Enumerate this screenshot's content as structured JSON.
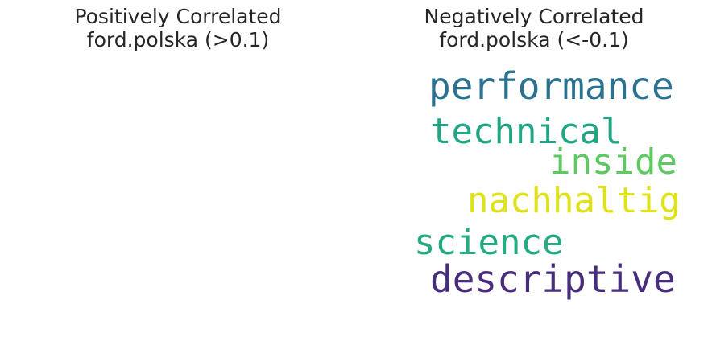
{
  "chart_data": [
    {
      "type": "wordcloud",
      "title_line1": "Positively Correlated",
      "title_line2": "ford.polska (>0.1)",
      "words": []
    },
    {
      "type": "wordcloud",
      "title_line1": "Negatively Correlated",
      "title_line2": "ford.polska (<-0.1)",
      "words": [
        {
          "text": "performance",
          "color": "#2c718e"
        },
        {
          "text": "technical",
          "color": "#21a685"
        },
        {
          "text": "inside",
          "color": "#5ec962"
        },
        {
          "text": "nachhaltig",
          "color": "#dde318"
        },
        {
          "text": "science",
          "color": "#25ab82"
        },
        {
          "text": "descriptive",
          "color": "#472d7b"
        }
      ]
    }
  ]
}
